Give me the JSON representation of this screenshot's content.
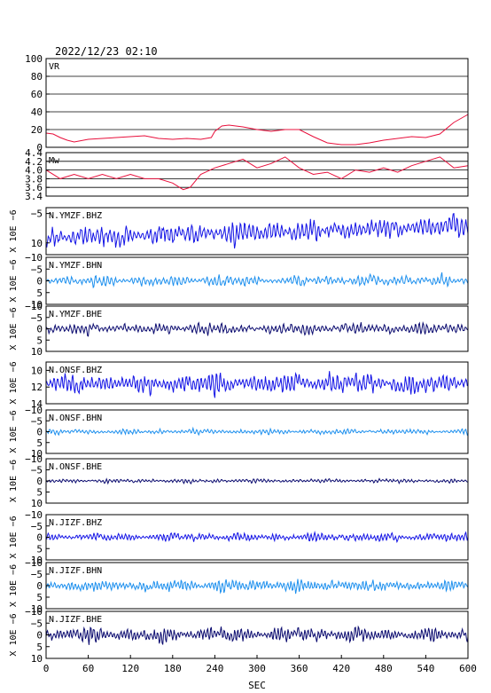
{
  "chart_data": {
    "type": "line",
    "title": "2022/12/23 02:10",
    "xlabel": "SEC",
    "xlim": [
      0,
      600
    ],
    "xticks": [
      0,
      60,
      120,
      180,
      240,
      300,
      360,
      420,
      480,
      540,
      600
    ],
    "panels": [
      {
        "id": "vr",
        "label": "VR",
        "color": "#e8103c",
        "ylim": [
          0,
          100
        ],
        "yticks": [
          0,
          20,
          40,
          60,
          80,
          100
        ],
        "grid": true,
        "x": [
          0,
          10,
          20,
          30,
          40,
          60,
          80,
          100,
          120,
          140,
          160,
          180,
          200,
          220,
          235,
          240,
          250,
          260,
          280,
          300,
          320,
          340,
          360,
          380,
          400,
          420,
          440,
          460,
          480,
          500,
          520,
          540,
          560,
          580,
          600
        ],
        "values": [
          16,
          15,
          11,
          8,
          6,
          9,
          10,
          11,
          12,
          13,
          10,
          9,
          10,
          9,
          11,
          18,
          24,
          25,
          23,
          20,
          18,
          20,
          20,
          12,
          5,
          3,
          3,
          5,
          8,
          10,
          12,
          11,
          15,
          28,
          37
        ]
      },
      {
        "id": "mw",
        "label": "Mw",
        "color": "#e8103c",
        "ylim": [
          3.4,
          4.4
        ],
        "yticks": [
          3.4,
          3.6,
          3.8,
          4.0,
          4.2,
          4.4
        ],
        "ytick_labels": [
          "3.4",
          "3.6",
          "3.8",
          "4.0",
          "4.2",
          "4.4"
        ],
        "grid": true,
        "x": [
          0,
          20,
          40,
          60,
          80,
          100,
          120,
          140,
          160,
          180,
          195,
          205,
          220,
          240,
          260,
          280,
          300,
          320,
          340,
          360,
          380,
          400,
          420,
          440,
          460,
          480,
          500,
          520,
          540,
          560,
          580,
          600
        ],
        "values": [
          4.0,
          3.8,
          3.9,
          3.8,
          3.9,
          3.8,
          3.9,
          3.8,
          3.8,
          3.7,
          3.55,
          3.6,
          3.9,
          4.05,
          4.15,
          4.25,
          4.05,
          4.15,
          4.3,
          4.05,
          3.9,
          3.95,
          3.8,
          4.0,
          3.95,
          4.05,
          3.95,
          4.1,
          4.2,
          4.3,
          4.05,
          4.1
        ]
      },
      {
        "id": "ymzf_bhz",
        "label": "N.YMZF.BHZ",
        "color": "#1414e6",
        "ylim": [
          -8,
          16
        ],
        "yticks": [
          -5,
          10
        ],
        "yunit": "X 10E −6",
        "amp": 5.5,
        "offset": 7.5,
        "trend": -6,
        "seed": 1,
        "x": [],
        "values": []
      },
      {
        "id": "ymzf_bhn",
        "label": "N.YMZF.BHN",
        "color": "#1e90ee",
        "ylim": [
          -10,
          10
        ],
        "yticks": [
          -10,
          -5,
          0,
          5,
          10
        ],
        "yunit": "X 10E −6",
        "amp": 2.2,
        "offset": 0,
        "trend": 0,
        "seed": 2,
        "x": [],
        "values": []
      },
      {
        "id": "ymzf_bhe",
        "label": "N.YMZF.BHE",
        "color": "#0c0c70",
        "ylim": [
          -10,
          10
        ],
        "yticks": [
          -10,
          -5,
          0,
          5,
          10
        ],
        "yunit": "X 10E −6",
        "amp": 2.4,
        "offset": 0,
        "trend": 0,
        "seed": 3,
        "x": [],
        "values": []
      },
      {
        "id": "onsf_bhz",
        "label": "N.ONSF.BHZ",
        "color": "#1414e6",
        "ylim": [
          9,
          14
        ],
        "yticks": [
          10,
          12,
          14
        ],
        "yunit": "X 10E −6",
        "amp": 1.2,
        "offset": 11.6,
        "trend": 0,
        "seed": 4,
        "x": [],
        "values": []
      },
      {
        "id": "onsf_bhn",
        "label": "N.ONSF.BHN",
        "color": "#1e90ee",
        "ylim": [
          -10,
          10
        ],
        "yticks": [
          -10,
          -5,
          0,
          5,
          10
        ],
        "yunit": "X 10E −6",
        "amp": 1.2,
        "offset": 0,
        "trend": 0,
        "seed": 5,
        "x": [],
        "values": []
      },
      {
        "id": "onsf_bhe",
        "label": "N.ONSF.BHE",
        "color": "#0c0c70",
        "ylim": [
          -10,
          10
        ],
        "yticks": [
          -10,
          -5,
          0,
          5,
          10
        ],
        "yunit": "X 10E −6",
        "amp": 0.9,
        "offset": 0,
        "trend": 0,
        "seed": 6,
        "x": [],
        "values": []
      },
      {
        "id": "jizf_bhz",
        "label": "N.JIZF.BHZ",
        "color": "#1414e6",
        "ylim": [
          -10,
          10
        ],
        "yticks": [
          -10,
          -5,
          0,
          5,
          10
        ],
        "yunit": "X 10E −6",
        "amp": 1.8,
        "offset": 0,
        "trend": 0,
        "seed": 7,
        "x": [],
        "values": []
      },
      {
        "id": "jizf_bhn",
        "label": "N.JIZF.BHN",
        "color": "#1e90ee",
        "ylim": [
          -10,
          10
        ],
        "yticks": [
          -10,
          -5,
          0,
          5,
          10
        ],
        "yunit": "X 10E −6",
        "amp": 2.6,
        "offset": 0,
        "trend": 0,
        "seed": 8,
        "x": [],
        "values": []
      },
      {
        "id": "jizf_bhe",
        "label": "N.JIZF.BHE",
        "color": "#0c0c70",
        "ylim": [
          -10,
          10
        ],
        "yticks": [
          -10,
          -5,
          0,
          5,
          10
        ],
        "yunit": "X 10E −6",
        "amp": 3.0,
        "offset": 0,
        "trend": 0,
        "seed": 9,
        "x": [],
        "values": []
      }
    ]
  }
}
